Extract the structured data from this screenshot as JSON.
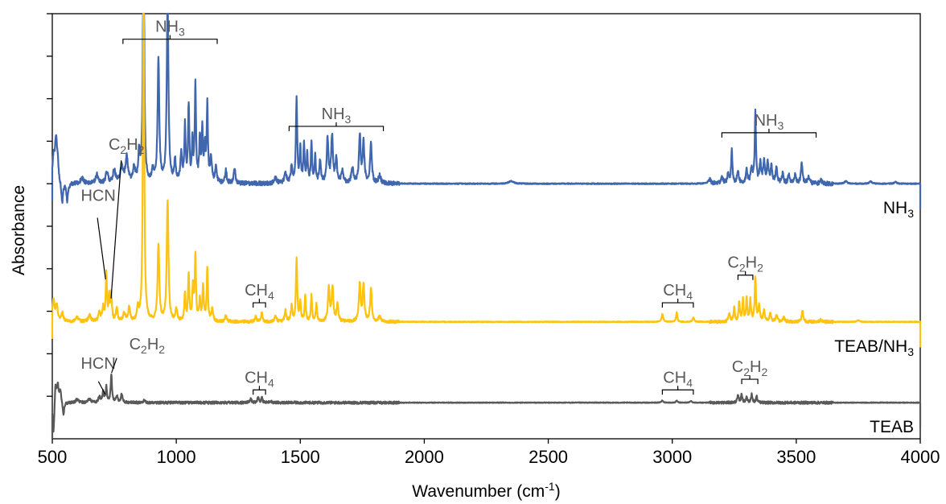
{
  "chart_data": {
    "type": "line",
    "xlabel": "Wavenumber (cm-1)",
    "xlabel_parts": [
      "Wavenumber (cm",
      "-1",
      ")"
    ],
    "ylabel": "Absorbance",
    "xlim": [
      500,
      4000
    ],
    "ylim": [
      0,
      10
    ],
    "x_ticks": [
      500,
      1000,
      1500,
      2000,
      2500,
      3000,
      3500,
      4000
    ],
    "y_tick_marks": [
      1,
      2,
      3,
      4,
      5,
      6,
      7,
      8,
      9,
      10
    ],
    "grid": false,
    "legend": "none",
    "series": [
      {
        "name": "NH3",
        "label_parts": [
          "NH",
          "3"
        ],
        "color": "#4066ad",
        "baseline": 6.0,
        "noise": 0.05,
        "peaks": [
          [
            505,
            0.55,
            5
          ],
          [
            515,
            1.0,
            5
          ],
          [
            522,
            0.35,
            4
          ],
          [
            540,
            -0.5,
            4
          ],
          [
            560,
            -0.4,
            4
          ],
          [
            620,
            0.15,
            6
          ],
          [
            680,
            0.2,
            6
          ],
          [
            720,
            0.25,
            6
          ],
          [
            750,
            0.3,
            6
          ],
          [
            780,
            0.4,
            6
          ],
          [
            800,
            0.6,
            6
          ],
          [
            830,
            0.35,
            5
          ],
          [
            850,
            0.7,
            4
          ],
          [
            868,
            7.0,
            3
          ],
          [
            905,
            0.3,
            4
          ],
          [
            928,
            2.85,
            4
          ],
          [
            965,
            4.3,
            4
          ],
          [
            995,
            0.5,
            4
          ],
          [
            1020,
            0.7,
            4
          ],
          [
            1035,
            1.3,
            3
          ],
          [
            1050,
            1.8,
            3
          ],
          [
            1065,
            0.9,
            3
          ],
          [
            1077,
            2.3,
            3
          ],
          [
            1095,
            1.0,
            3
          ],
          [
            1105,
            1.2,
            3
          ],
          [
            1115,
            0.8,
            3
          ],
          [
            1125,
            1.8,
            3
          ],
          [
            1140,
            0.6,
            4
          ],
          [
            1160,
            0.4,
            4
          ],
          [
            1200,
            0.3,
            4
          ],
          [
            1235,
            0.35,
            4
          ],
          [
            1400,
            0.12,
            6
          ],
          [
            1440,
            0.25,
            5
          ],
          [
            1465,
            0.4,
            4
          ],
          [
            1485,
            2.0,
            3
          ],
          [
            1500,
            0.8,
            3
          ],
          [
            1515,
            0.9,
            3
          ],
          [
            1528,
            0.7,
            3
          ],
          [
            1545,
            0.9,
            3
          ],
          [
            1560,
            0.6,
            3
          ],
          [
            1580,
            0.5,
            4
          ],
          [
            1610,
            1.05,
            4
          ],
          [
            1628,
            1.1,
            4
          ],
          [
            1645,
            0.6,
            4
          ],
          [
            1670,
            0.3,
            5
          ],
          [
            1710,
            0.35,
            5
          ],
          [
            1740,
            1.1,
            4
          ],
          [
            1755,
            1.0,
            4
          ],
          [
            1785,
            0.95,
            4
          ],
          [
            1820,
            0.2,
            5
          ],
          [
            2350,
            0.06,
            12
          ],
          [
            3150,
            0.1,
            6
          ],
          [
            3200,
            0.15,
            5
          ],
          [
            3225,
            0.2,
            4
          ],
          [
            3240,
            0.8,
            3
          ],
          [
            3265,
            0.3,
            4
          ],
          [
            3300,
            0.3,
            4
          ],
          [
            3320,
            0.35,
            4
          ],
          [
            3335,
            1.65,
            3
          ],
          [
            3355,
            0.45,
            4
          ],
          [
            3370,
            0.5,
            4
          ],
          [
            3385,
            0.45,
            4
          ],
          [
            3400,
            0.4,
            4
          ],
          [
            3420,
            0.35,
            4
          ],
          [
            3445,
            0.25,
            4
          ],
          [
            3470,
            0.2,
            4
          ],
          [
            3495,
            0.2,
            4
          ],
          [
            3522,
            0.45,
            4
          ],
          [
            3550,
            0.15,
            5
          ],
          [
            3600,
            0.08,
            5
          ],
          [
            3700,
            0.06,
            6
          ],
          [
            3800,
            0.05,
            6
          ],
          [
            3900,
            0.04,
            6
          ]
        ],
        "annotations": [
          {
            "label": "NH",
            "sub": "3",
            "x1": 785,
            "x2": 1165,
            "y": 9.4
          },
          {
            "label": "NH",
            "sub": "3",
            "x1": 1455,
            "x2": 1835,
            "y": 7.35
          },
          {
            "label": "NH",
            "sub": "3",
            "x1": 3200,
            "x2": 3580,
            "y": 7.2
          }
        ]
      },
      {
        "name": "TEAB/NH3",
        "label_parts": [
          "TEAB/NH",
          "3"
        ],
        "color": "#ffc20e",
        "baseline": 2.75,
        "noise": 0.035,
        "peaks": [
          [
            505,
            0.5,
            5
          ],
          [
            518,
            0.35,
            5
          ],
          [
            540,
            0.2,
            5
          ],
          [
            600,
            0.1,
            6
          ],
          [
            650,
            0.15,
            6
          ],
          [
            690,
            0.2,
            5
          ],
          [
            705,
            0.3,
            4
          ],
          [
            718,
            1.15,
            3
          ],
          [
            730,
            0.55,
            3
          ],
          [
            738,
            0.6,
            3
          ],
          [
            760,
            0.3,
            4
          ],
          [
            790,
            0.2,
            5
          ],
          [
            810,
            0.35,
            4
          ],
          [
            845,
            0.3,
            4
          ],
          [
            868,
            8.6,
            3
          ],
          [
            928,
            1.8,
            4
          ],
          [
            965,
            2.85,
            4
          ],
          [
            1000,
            0.3,
            4
          ],
          [
            1035,
            0.65,
            3
          ],
          [
            1050,
            1.1,
            3
          ],
          [
            1067,
            0.8,
            3
          ],
          [
            1077,
            1.55,
            3
          ],
          [
            1095,
            0.5,
            3
          ],
          [
            1108,
            0.85,
            3
          ],
          [
            1125,
            1.25,
            3
          ],
          [
            1145,
            0.3,
            4
          ],
          [
            1200,
            0.15,
            4
          ],
          [
            1320,
            0.12,
            4
          ],
          [
            1345,
            0.22,
            3
          ],
          [
            1400,
            0.12,
            5
          ],
          [
            1440,
            0.25,
            4
          ],
          [
            1465,
            0.35,
            4
          ],
          [
            1485,
            1.5,
            3
          ],
          [
            1500,
            0.45,
            3
          ],
          [
            1520,
            0.6,
            3
          ],
          [
            1545,
            0.6,
            3
          ],
          [
            1565,
            0.4,
            3
          ],
          [
            1615,
            0.8,
            4
          ],
          [
            1630,
            0.8,
            4
          ],
          [
            1650,
            0.4,
            4
          ],
          [
            1740,
            0.9,
            4
          ],
          [
            1755,
            0.85,
            4
          ],
          [
            1785,
            0.75,
            4
          ],
          [
            1820,
            0.12,
            5
          ],
          [
            2960,
            0.18,
            4
          ],
          [
            3018,
            0.22,
            3
          ],
          [
            3085,
            0.1,
            4
          ],
          [
            3230,
            0.2,
            4
          ],
          [
            3250,
            0.35,
            3
          ],
          [
            3270,
            0.45,
            3
          ],
          [
            3285,
            0.5,
            3
          ],
          [
            3300,
            0.55,
            3
          ],
          [
            3315,
            0.5,
            3
          ],
          [
            3335,
            1.05,
            3
          ],
          [
            3350,
            0.35,
            4
          ],
          [
            3370,
            0.25,
            4
          ],
          [
            3395,
            0.2,
            4
          ],
          [
            3420,
            0.15,
            4
          ],
          [
            3450,
            0.12,
            4
          ],
          [
            3525,
            0.25,
            4
          ],
          [
            3600,
            0.06,
            5
          ],
          [
            3750,
            0.04,
            6
          ]
        ],
        "annotations": [
          {
            "label": "HCN",
            "x": 718,
            "bracket": false,
            "text_x": 615,
            "text_y": 5.6,
            "line_from": [
              682,
              5.2
            ],
            "line_to": [
              715,
              3.75
            ]
          },
          {
            "label": "C",
            "sub": "2",
            "label2": "H",
            "sub2": "2",
            "x": 738,
            "bracket": false,
            "text_x": 727,
            "text_y": 6.8,
            "line_from": [
              778,
              6.55
            ],
            "line_to": [
              737,
              3.3
            ]
          },
          {
            "label": "CH",
            "sub": "4",
            "x1": 1310,
            "x2": 1360,
            "y": 3.2
          },
          {
            "label": "CH",
            "sub": "4",
            "x1": 2960,
            "x2": 3085,
            "y": 3.2
          },
          {
            "label": "C",
            "sub": "2",
            "label2": "H",
            "sub2": "2",
            "x1": 3265,
            "x2": 3325,
            "y": 3.85
          }
        ]
      },
      {
        "name": "TEAB",
        "label_parts": [
          "TEAB"
        ],
        "color": "#595959",
        "baseline": 0.85,
        "noise": 0.03,
        "peaks": [
          [
            505,
            -0.8,
            4
          ],
          [
            513,
            0.5,
            4
          ],
          [
            522,
            0.4,
            4
          ],
          [
            532,
            0.3,
            4
          ],
          [
            545,
            -0.3,
            4
          ],
          [
            600,
            0.08,
            6
          ],
          [
            650,
            0.08,
            6
          ],
          [
            690,
            0.12,
            5
          ],
          [
            705,
            0.25,
            4
          ],
          [
            718,
            0.35,
            3
          ],
          [
            738,
            0.65,
            3
          ],
          [
            760,
            0.15,
            4
          ],
          [
            780,
            0.2,
            4
          ],
          [
            870,
            0.05,
            4
          ],
          [
            1300,
            0.08,
            4
          ],
          [
            1330,
            0.12,
            4
          ],
          [
            1345,
            0.12,
            3
          ],
          [
            1380,
            0.05,
            4
          ],
          [
            2960,
            0.05,
            4
          ],
          [
            3018,
            0.05,
            3
          ],
          [
            3075,
            0.04,
            4
          ],
          [
            3265,
            0.15,
            4
          ],
          [
            3280,
            0.2,
            3
          ],
          [
            3300,
            0.15,
            3
          ],
          [
            3320,
            0.2,
            3
          ],
          [
            3340,
            0.15,
            3
          ]
        ],
        "annotations": [
          {
            "label": "HCN",
            "x": 718,
            "bracket": false,
            "text_x": 615,
            "text_y": 1.65,
            "line_from": [
              686,
              1.35
            ],
            "line_to": [
              713,
              1.05
            ]
          },
          {
            "label": "C",
            "sub": "2",
            "label2": "H",
            "sub2": "2",
            "x": 738,
            "bracket": false,
            "text_x": 810,
            "text_y": 2.1,
            "line_from": [
              760,
              1.9
            ],
            "line_to": [
              739,
              1.55
            ]
          },
          {
            "label": "CH",
            "sub": "4",
            "x1": 1310,
            "x2": 1360,
            "y": 1.15
          },
          {
            "label": "CH",
            "sub": "4",
            "x1": 2960,
            "x2": 3085,
            "y": 1.15
          },
          {
            "label": "C",
            "sub": "2",
            "label2": "H",
            "sub2": "2",
            "x1": 3280,
            "x2": 3345,
            "y": 1.4
          }
        ]
      }
    ]
  }
}
